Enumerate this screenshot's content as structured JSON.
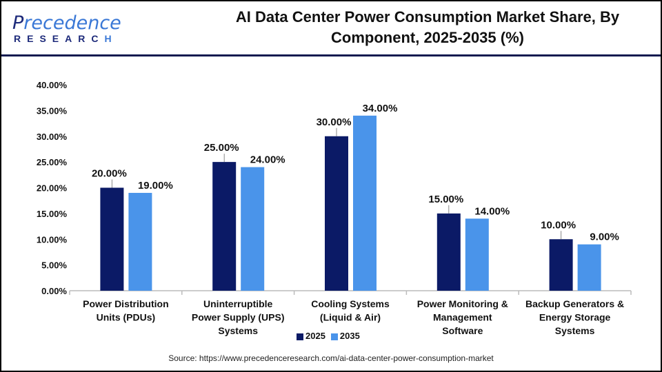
{
  "logo": {
    "text_first": "P",
    "text_rest": "recedence",
    "sub_main": "RESEARC",
    "sub_h": "H"
  },
  "title_line1": "AI Data Center Power Consumption Market Share, By",
  "title_line2": "Component, 2025-2035 (%)",
  "source": "Source: https://www.precedenceresearch.com/ai-data-center-power-consumption-market",
  "colors": {
    "2025": "#0b1a66",
    "2035": "#4a94ea"
  },
  "chart_data": {
    "type": "bar",
    "title": "AI Data Center Power Consumption Market Share, By Component, 2025-2035 (%)",
    "categories": [
      [
        "Power Distribution",
        "Units (PDUs)"
      ],
      [
        "Uninterruptible",
        "Power Supply (UPS)",
        "Systems"
      ],
      [
        "Cooling Systems",
        "(Liquid & Air)"
      ],
      [
        "Power Monitoring &",
        "Management",
        "Software"
      ],
      [
        "Backup Generators &",
        "Energy Storage",
        "Systems"
      ]
    ],
    "series": [
      {
        "name": "2025",
        "values": [
          20,
          25,
          30,
          15,
          10
        ],
        "labels": [
          "20.00%",
          "25.00%",
          "30.00%",
          "15.00%",
          "10.00%"
        ]
      },
      {
        "name": "2035",
        "values": [
          19,
          24,
          34,
          14,
          9
        ],
        "labels": [
          "19.00%",
          "24.00%",
          "34.00%",
          "14.00%",
          "9.00%"
        ]
      }
    ],
    "yticks": [
      "0.00%",
      "5.00%",
      "10.00%",
      "15.00%",
      "20.00%",
      "25.00%",
      "30.00%",
      "35.00%",
      "40.00%"
    ],
    "ylim": [
      0,
      40
    ],
    "grid": false,
    "legend": "bottom"
  }
}
